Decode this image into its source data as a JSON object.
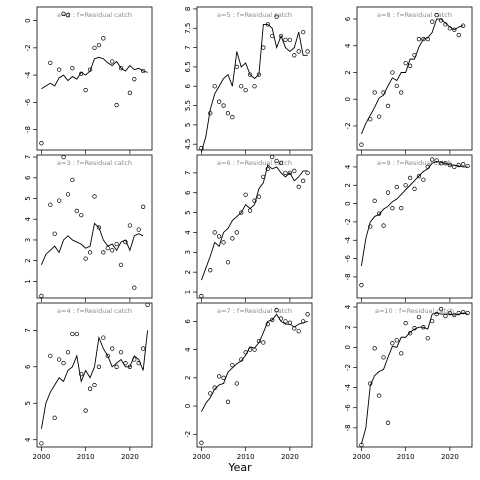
{
  "figure": {
    "xlabel": "Year"
  },
  "chart_data": [
    {
      "type": "line",
      "title": "a=2  :  f=Residual catch",
      "xlim": [
        1999,
        2025
      ],
      "ylim": [
        -9.5,
        1
      ],
      "yticks": [
        0,
        -2,
        -4,
        -6,
        -8
      ],
      "x_obs": [
        2000,
        2002,
        2004,
        2005,
        2006,
        2007,
        2009,
        2010,
        2011,
        2012,
        2013,
        2014,
        2016,
        2017,
        2018,
        2020,
        2021,
        2023
      ],
      "y_obs": [
        -9.0,
        -3.1,
        -3.6,
        0.5,
        0.4,
        -3.5,
        -3.9,
        -5.1,
        -3.6,
        -2.0,
        -1.8,
        -1.3,
        -3.0,
        -6.2,
        -3.5,
        -5.3,
        -4.3,
        -3.7
      ],
      "x_fit": [
        2000,
        2001,
        2002,
        2003,
        2004,
        2005,
        2006,
        2007,
        2008,
        2009,
        2010,
        2011,
        2012,
        2013,
        2014,
        2015,
        2016,
        2017,
        2018,
        2019,
        2020,
        2021,
        2022,
        2023,
        2024
      ],
      "y_fit": [
        -5.0,
        -4.8,
        -4.6,
        -4.8,
        -4.2,
        -4.0,
        -4.4,
        -4.1,
        -4.3,
        -3.8,
        -4.0,
        -3.7,
        -2.8,
        -2.7,
        -2.8,
        -3.1,
        -3.3,
        -3.0,
        -3.5,
        -3.7,
        -3.3,
        -3.6,
        -3.5,
        -3.7,
        -3.8
      ]
    },
    {
      "type": "line",
      "title": "a=5  :  f=Residual catch",
      "xlim": [
        1999,
        2025
      ],
      "ylim": [
        4.35,
        8.05
      ],
      "yticks": [
        4.5,
        5.0,
        5.5,
        6.0,
        6.5,
        7.0,
        7.5,
        8.0
      ],
      "x_obs": [
        2000,
        2002,
        2003,
        2004,
        2005,
        2006,
        2007,
        2008,
        2009,
        2010,
        2011,
        2012,
        2013,
        2014,
        2015,
        2016,
        2017,
        2018,
        2019,
        2020,
        2021,
        2022,
        2023,
        2024
      ],
      "y_obs": [
        4.4,
        5.3,
        6.0,
        5.6,
        5.5,
        5.3,
        5.2,
        6.5,
        6.0,
        5.9,
        6.3,
        6.0,
        6.3,
        7.0,
        7.6,
        7.3,
        7.8,
        7.3,
        7.2,
        7.2,
        6.8,
        6.9,
        7.4,
        6.9
      ],
      "x_fit": [
        2000,
        2001,
        2002,
        2003,
        2004,
        2005,
        2006,
        2007,
        2008,
        2009,
        2010,
        2011,
        2012,
        2013,
        2014,
        2015,
        2016,
        2017,
        2018,
        2019,
        2020,
        2021,
        2022,
        2023,
        2024
      ],
      "y_fit": [
        4.3,
        4.7,
        5.4,
        5.8,
        6.0,
        6.2,
        6.3,
        6.0,
        6.9,
        6.5,
        6.6,
        6.3,
        6.2,
        6.3,
        7.6,
        7.6,
        7.5,
        7.0,
        7.3,
        7.0,
        6.9,
        7.0,
        7.4,
        6.8,
        6.8
      ]
    },
    {
      "type": "line",
      "title": "a=8  :  f=Residual catch",
      "xlim": [
        1999,
        2025
      ],
      "ylim": [
        -3.8,
        6.9
      ],
      "yticks": [
        -2,
        0,
        2,
        4,
        6
      ],
      "x_obs": [
        2000,
        2002,
        2003,
        2004,
        2005,
        2006,
        2007,
        2008,
        2009,
        2010,
        2011,
        2012,
        2013,
        2014,
        2015,
        2016,
        2017,
        2018,
        2019,
        2020,
        2021,
        2022,
        2023
      ],
      "y_obs": [
        -3.4,
        -1.5,
        0.5,
        -1.3,
        0.5,
        -0.5,
        2.0,
        1.0,
        0.5,
        2.7,
        2.5,
        3.3,
        4.5,
        4.5,
        4.5,
        5.8,
        6.3,
        5.9,
        5.6,
        5.3,
        5.2,
        4.8,
        5.5
      ],
      "x_fit": [
        2000,
        2001,
        2002,
        2003,
        2004,
        2005,
        2006,
        2007,
        2008,
        2009,
        2010,
        2011,
        2012,
        2013,
        2014,
        2015,
        2016,
        2017,
        2018,
        2019,
        2020,
        2021,
        2022,
        2023
      ],
      "y_fit": [
        -2.6,
        -1.8,
        -1.2,
        -0.6,
        0.1,
        0.3,
        1.0,
        1.6,
        1.4,
        2.0,
        2.0,
        3.0,
        3.0,
        3.9,
        4.5,
        4.6,
        5.0,
        6.0,
        6.0,
        5.7,
        5.4,
        5.2,
        5.4,
        5.5
      ]
    },
    {
      "type": "line",
      "title": "a=3  :  f=Residual catch",
      "xlim": [
        1999,
        2025
      ],
      "ylim": [
        0.2,
        7.1
      ],
      "yticks": [
        1,
        2,
        3,
        4,
        5,
        6,
        7
      ],
      "x_obs": [
        2000,
        2002,
        2003,
        2004,
        2005,
        2006,
        2007,
        2008,
        2009,
        2010,
        2011,
        2012,
        2013,
        2014,
        2015,
        2016,
        2017,
        2018,
        2019,
        2020,
        2021,
        2022,
        2023
      ],
      "y_obs": [
        0.3,
        4.7,
        3.3,
        4.9,
        7.0,
        5.2,
        5.9,
        4.4,
        4.2,
        2.1,
        2.4,
        5.1,
        3.6,
        2.4,
        2.6,
        2.5,
        2.8,
        1.8,
        2.9,
        3.7,
        0.7,
        3.5,
        4.6
      ],
      "x_fit": [
        2000,
        2001,
        2002,
        2003,
        2004,
        2005,
        2006,
        2007,
        2008,
        2009,
        2010,
        2011,
        2012,
        2013,
        2014,
        2015,
        2016,
        2017,
        2018,
        2019,
        2020,
        2021,
        2022,
        2023
      ],
      "y_fit": [
        1.8,
        2.3,
        2.5,
        2.7,
        2.4,
        3.0,
        3.2,
        3.0,
        2.9,
        2.8,
        2.6,
        2.7,
        3.8,
        3.6,
        3.0,
        2.7,
        2.8,
        2.5,
        2.9,
        3.0,
        2.5,
        3.2,
        3.3,
        3.2
      ]
    },
    {
      "type": "line",
      "title": "a=6  :  f=Residual catch",
      "xlim": [
        1999,
        2025
      ],
      "ylim": [
        0.7,
        7.9
      ],
      "yticks": [
        1,
        2,
        3,
        4,
        5,
        6,
        7
      ],
      "x_obs": [
        2000,
        2002,
        2003,
        2004,
        2005,
        2006,
        2007,
        2008,
        2009,
        2010,
        2011,
        2012,
        2013,
        2014,
        2015,
        2016,
        2017,
        2018,
        2019,
        2020,
        2021,
        2022,
        2023,
        2024
      ],
      "y_obs": [
        0.8,
        2.1,
        4.0,
        3.8,
        3.5,
        2.5,
        3.7,
        4.0,
        5.0,
        5.9,
        5.1,
        5.6,
        5.8,
        6.8,
        7.2,
        7.8,
        7.6,
        7.5,
        7.0,
        7.0,
        7.1,
        6.3,
        6.6,
        7.0
      ],
      "x_fit": [
        2000,
        2001,
        2002,
        2003,
        2004,
        2005,
        2006,
        2007,
        2008,
        2009,
        2010,
        2011,
        2012,
        2013,
        2014,
        2015,
        2016,
        2017,
        2018,
        2019,
        2020,
        2021,
        2022,
        2023,
        2024
      ],
      "y_fit": [
        1.6,
        2.2,
        2.8,
        3.5,
        3.3,
        4.0,
        4.2,
        4.6,
        4.8,
        5.0,
        5.4,
        5.2,
        5.4,
        6.2,
        6.5,
        7.4,
        7.2,
        7.3,
        7.0,
        6.8,
        7.0,
        6.6,
        6.8,
        7.1,
        7.1
      ]
    },
    {
      "type": "line",
      "title": "a=9  :  f=Residual catch",
      "xlim": [
        1999,
        2025
      ],
      "ylim": [
        -10.3,
        5.3
      ],
      "yticks": [
        4,
        2,
        0,
        -2,
        -4,
        -6,
        -8
      ],
      "x_obs": [
        2000,
        2002,
        2003,
        2004,
        2005,
        2006,
        2007,
        2008,
        2009,
        2010,
        2011,
        2012,
        2013,
        2014,
        2015,
        2016,
        2017,
        2018,
        2019,
        2020,
        2021,
        2022,
        2023,
        2024
      ],
      "y_obs": [
        -8.9,
        -2.5,
        0.3,
        -1.1,
        -2.4,
        1.2,
        -0.5,
        1.8,
        -0.5,
        2.0,
        2.8,
        1.6,
        3.0,
        2.6,
        4.0,
        4.8,
        4.7,
        4.4,
        4.4,
        4.2,
        4.0,
        4.2,
        4.3,
        4.1
      ],
      "x_fit": [
        2000,
        2001,
        2002,
        2003,
        2004,
        2005,
        2006,
        2007,
        2008,
        2009,
        2010,
        2011,
        2012,
        2013,
        2014,
        2015,
        2016,
        2017,
        2018,
        2019,
        2020,
        2021,
        2022,
        2023,
        2024
      ],
      "y_fit": [
        -6.8,
        -3.8,
        -2.0,
        -1.4,
        -1.2,
        -0.6,
        -0.3,
        0.2,
        0.5,
        1.0,
        1.5,
        2.0,
        2.5,
        3.0,
        3.5,
        3.8,
        4.4,
        4.6,
        4.5,
        4.4,
        4.2,
        4.2,
        4.1,
        4.0,
        4.0
      ]
    },
    {
      "type": "line",
      "title": "a=4  :  f=Residual catch",
      "xlim": [
        1999,
        2025
      ],
      "ylim": [
        3.8,
        7.75
      ],
      "yticks": [
        4,
        5,
        6,
        7
      ],
      "x_obs": [
        2000,
        2002,
        2003,
        2004,
        2005,
        2006,
        2007,
        2008,
        2009,
        2010,
        2011,
        2012,
        2013,
        2014,
        2015,
        2016,
        2017,
        2018,
        2019,
        2020,
        2021,
        2022,
        2023,
        2024
      ],
      "y_obs": [
        3.9,
        6.3,
        4.6,
        6.2,
        6.1,
        6.4,
        6.9,
        6.9,
        5.8,
        4.8,
        5.4,
        5.5,
        6.0,
        6.8,
        6.3,
        6.5,
        6.0,
        6.4,
        6.1,
        6.0,
        6.2,
        6.1,
        6.5,
        7.7
      ],
      "x_fit": [
        2000,
        2001,
        2002,
        2003,
        2004,
        2005,
        2006,
        2007,
        2008,
        2009,
        2010,
        2011,
        2012,
        2013,
        2014,
        2015,
        2016,
        2017,
        2018,
        2019,
        2020,
        2021,
        2022,
        2023,
        2024
      ],
      "y_fit": [
        4.3,
        5.0,
        5.3,
        5.5,
        5.7,
        5.6,
        5.9,
        6.0,
        6.3,
        5.6,
        5.9,
        5.7,
        6.0,
        6.8,
        6.5,
        6.3,
        6.0,
        6.1,
        6.2,
        6.0,
        6.0,
        6.3,
        6.2,
        5.9,
        7.0
      ]
    },
    {
      "type": "line",
      "title": "a=7  :  f=Residual catch",
      "xlim": [
        1999,
        2025
      ],
      "ylim": [
        -2.9,
        7.3
      ],
      "yticks": [
        6,
        4,
        2,
        0,
        -2
      ],
      "x_obs": [
        2000,
        2002,
        2003,
        2004,
        2005,
        2006,
        2007,
        2008,
        2009,
        2010,
        2011,
        2012,
        2013,
        2014,
        2015,
        2016,
        2017,
        2018,
        2019,
        2020,
        2021,
        2022,
        2023,
        2024
      ],
      "y_obs": [
        -2.6,
        0.9,
        1.3,
        2.1,
        2.0,
        0.3,
        2.9,
        1.6,
        3.3,
        3.8,
        4.0,
        4.0,
        4.6,
        4.5,
        5.8,
        6.1,
        6.8,
        6.2,
        6.0,
        5.9,
        5.5,
        5.3,
        6.0,
        6.5
      ],
      "x_fit": [
        2000,
        2001,
        2002,
        2003,
        2004,
        2005,
        2006,
        2007,
        2008,
        2009,
        2010,
        2011,
        2012,
        2013,
        2014,
        2015,
        2016,
        2017,
        2018,
        2019,
        2020,
        2021,
        2022,
        2023,
        2024
      ],
      "y_fit": [
        -0.4,
        0.2,
        0.6,
        1.2,
        1.5,
        1.6,
        2.4,
        2.7,
        3.0,
        3.2,
        3.6,
        4.2,
        4.1,
        4.5,
        5.2,
        6.0,
        6.1,
        6.5,
        6.0,
        5.8,
        5.8,
        5.6,
        5.8,
        5.9,
        6.0
      ]
    },
    {
      "type": "line",
      "title": "a=10  :  f=Residual catch",
      "xlim": [
        1999,
        2025
      ],
      "ylim": [
        -9.9,
        4.4
      ],
      "yticks": [
        4,
        2,
        0,
        -2,
        -4,
        -6,
        -8
      ],
      "x_obs": [
        2000,
        2002,
        2003,
        2004,
        2005,
        2006,
        2007,
        2008,
        2009,
        2010,
        2011,
        2012,
        2013,
        2014,
        2015,
        2016,
        2017,
        2018,
        2019,
        2020,
        2021,
        2022,
        2023,
        2024
      ],
      "y_obs": [
        -9.7,
        -3.6,
        -0.1,
        -4.8,
        -1.0,
        -7.5,
        0.4,
        0.7,
        -0.6,
        2.4,
        1.4,
        1.9,
        3.0,
        2.0,
        0.9,
        2.6,
        3.3,
        3.8,
        3.1,
        3.4,
        3.2,
        3.4,
        3.5,
        3.4
      ],
      "x_fit": [
        2000,
        2001,
        2002,
        2003,
        2004,
        2005,
        2006,
        2007,
        2008,
        2009,
        2010,
        2011,
        2012,
        2013,
        2014,
        2015,
        2016,
        2017,
        2018,
        2019,
        2020,
        2021,
        2022,
        2023,
        2024
      ],
      "y_fit": [
        -9.6,
        -8.0,
        -3.8,
        -2.8,
        -2.4,
        -2.2,
        -1.0,
        0.1,
        0.0,
        1.0,
        1.0,
        1.5,
        1.8,
        2.0,
        2.0,
        1.8,
        3.3,
        3.4,
        3.3,
        3.3,
        3.3,
        3.2,
        3.3,
        3.4,
        3.3
      ]
    }
  ]
}
